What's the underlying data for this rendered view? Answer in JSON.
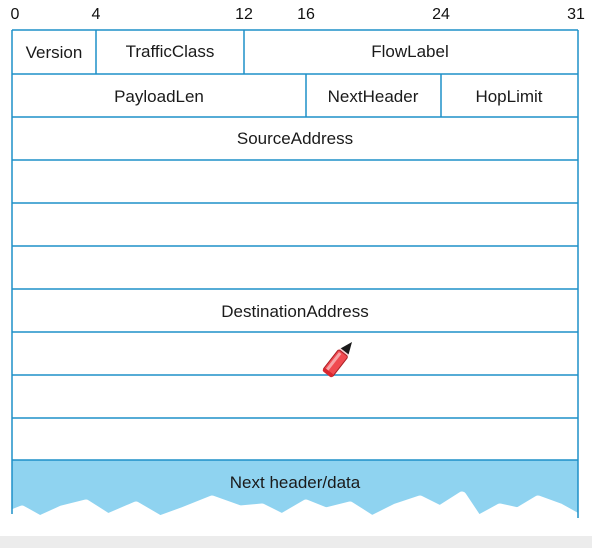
{
  "bit_positions": [
    "0",
    "4",
    "12",
    "16",
    "24",
    "31"
  ],
  "fields": {
    "version": "Version",
    "traffic_class": "TrafficClass",
    "flow_label": "FlowLabel",
    "payload_len": "PayloadLen",
    "next_header": "NextHeader",
    "hop_limit": "HopLimit",
    "source_address": "SourceAddress",
    "destination_address": "DestinationAddress",
    "next_header_data": "Next header/data"
  },
  "colors": {
    "border": "#1e90c8",
    "data_area": "#8fd3f0",
    "pencil_body": "#f04a50"
  },
  "icons": {
    "cursor": "pencil-icon"
  }
}
